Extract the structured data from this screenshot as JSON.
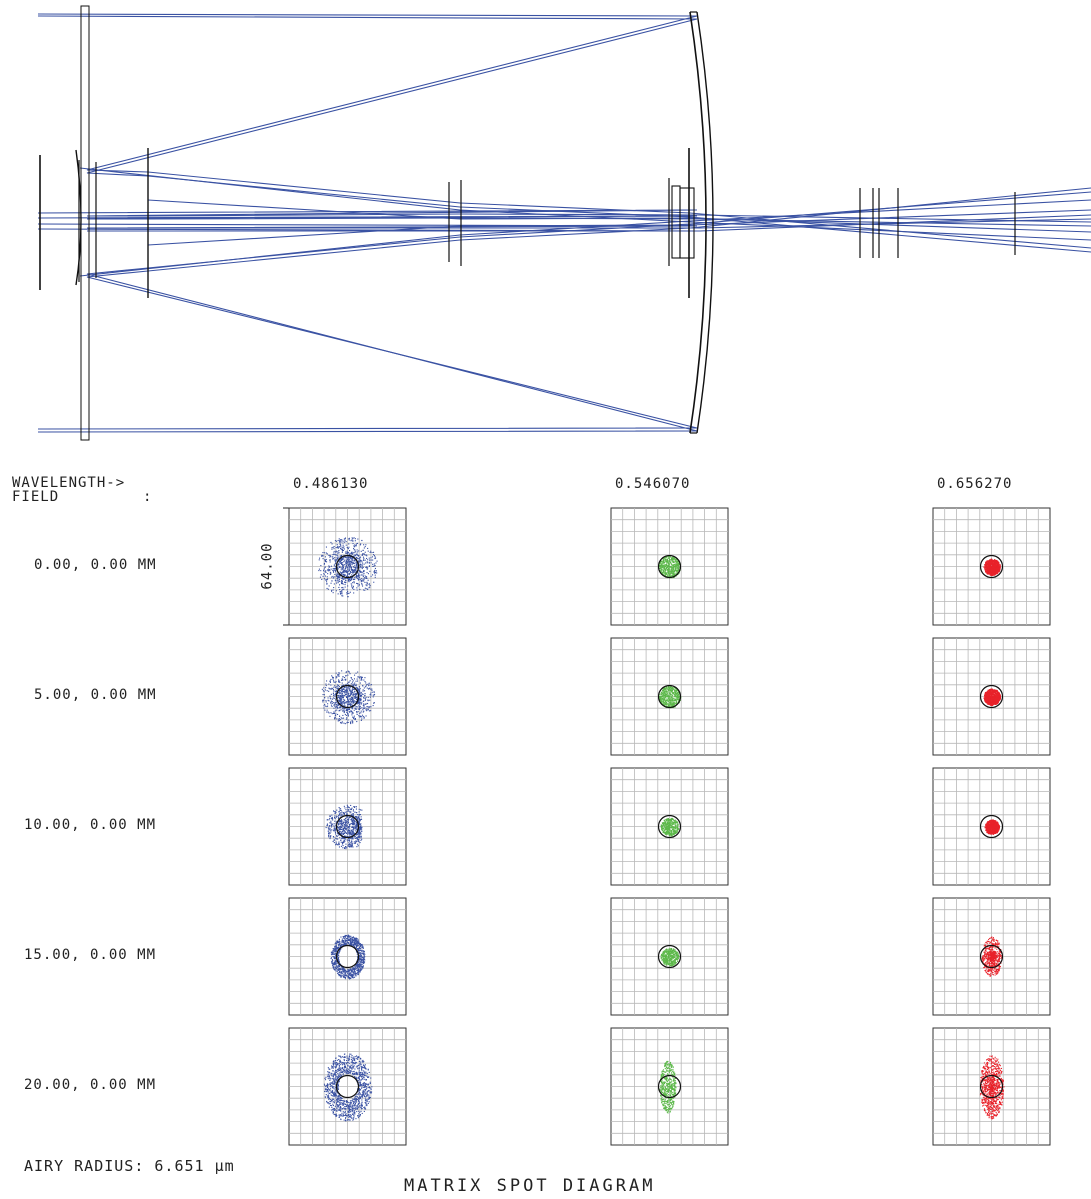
{
  "labels": {
    "wavelength_header": "WAVELENGTH->",
    "field_header": "FIELD",
    "field_colon": ":",
    "scale": "64.00",
    "airy_radius": "AIRY RADIUS: 6.651 µm",
    "title": "MATRIX SPOT DIAGRAM"
  },
  "wavelengths": [
    "0.486130",
    "0.546070",
    "0.656270"
  ],
  "fields": [
    "0.00, 0.00 MM",
    "5.00, 0.00 MM",
    "10.00, 0.00 MM",
    "15.00, 0.00 MM",
    "20.00, 0.00 MM"
  ],
  "colors": {
    "ray": "#3a52a3",
    "optic": "#111111",
    "grid": "#b8b8b8",
    "spot_blue": "#3a52a3",
    "spot_green": "#5cb84a",
    "spot_red": "#e8222a"
  }
}
